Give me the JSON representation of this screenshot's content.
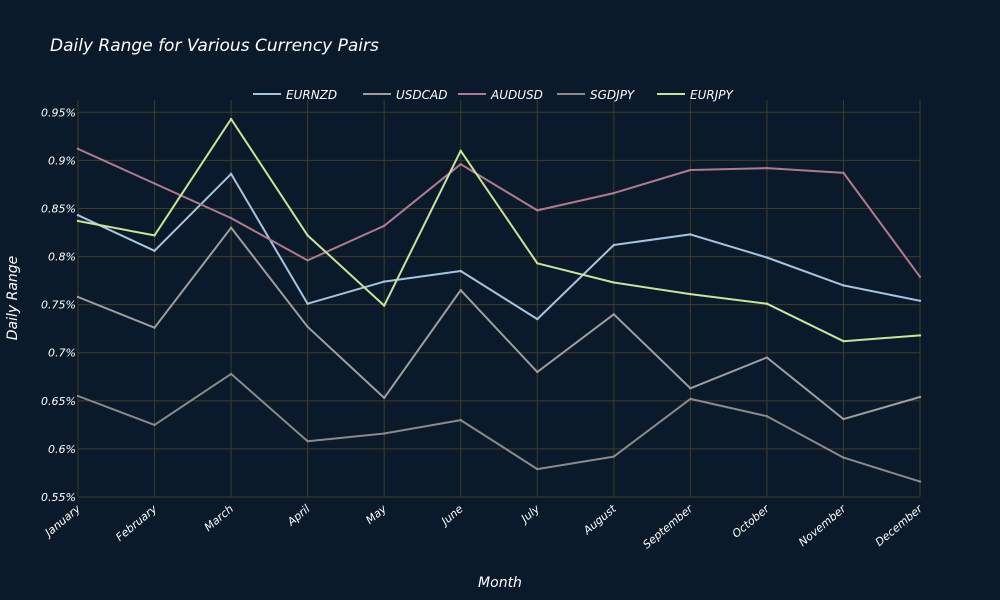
{
  "chart_data": {
    "type": "line",
    "title": "Daily Range for Various Currency Pairs",
    "xlabel": "Month",
    "ylabel": "Daily Range",
    "categories": [
      "January",
      "February",
      "March",
      "April",
      "May",
      "June",
      "July",
      "August",
      "September",
      "October",
      "November",
      "December"
    ],
    "ylim": [
      0.55,
      0.96
    ],
    "yticks": [
      0.55,
      0.6,
      0.65,
      0.7,
      0.75,
      0.8,
      0.85,
      0.9,
      0.95
    ],
    "ytick_labels": [
      "0.55%",
      "0.6%",
      "0.65%",
      "0.7%",
      "0.75%",
      "0.8%",
      "0.85%",
      "0.9%",
      "0.95%"
    ],
    "grid": true,
    "legend_position": "top-center",
    "background_color": "#0b1a2b",
    "grid_color": "#3d3d28",
    "series": [
      {
        "name": "EURNZD",
        "color": "#a6c4e0",
        "values": [
          0.843,
          0.806,
          0.886,
          0.751,
          0.774,
          0.785,
          0.735,
          0.812,
          0.823,
          0.799,
          0.77,
          0.754
        ]
      },
      {
        "name": "USDCAD",
        "color": "#9e9e9e",
        "values": [
          0.758,
          0.726,
          0.83,
          0.727,
          0.653,
          0.765,
          0.68,
          0.74,
          0.663,
          0.695,
          0.631,
          0.654
        ]
      },
      {
        "name": "AUDUSD",
        "color": "#b07a8e",
        "values": [
          0.912,
          0.876,
          0.84,
          0.796,
          0.832,
          0.896,
          0.848,
          0.866,
          0.89,
          0.892,
          0.887,
          0.779
        ]
      },
      {
        "name": "SGDJPY",
        "color": "#8a8a8a",
        "values": [
          0.655,
          0.625,
          0.678,
          0.608,
          0.616,
          0.63,
          0.579,
          0.592,
          0.652,
          0.634,
          0.591,
          0.566
        ]
      },
      {
        "name": "EURJPY",
        "color": "#c8e49a",
        "values": [
          0.837,
          0.822,
          0.943,
          0.822,
          0.749,
          0.91,
          0.793,
          0.773,
          0.761,
          0.751,
          0.712,
          0.718
        ]
      }
    ]
  }
}
